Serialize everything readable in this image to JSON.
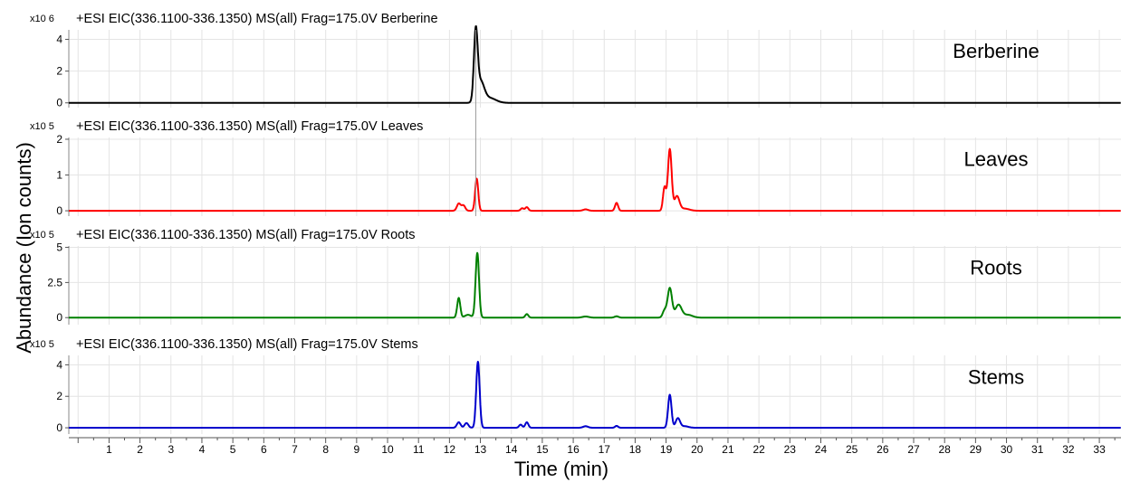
{
  "chart_data": {
    "type": "line",
    "xlabel": "Time (min)",
    "ylabel": "Abundance (Ion counts)",
    "xlim": [
      -0.3,
      33.7
    ],
    "x_ticks": [
      "1",
      "2",
      "3",
      "4",
      "5",
      "6",
      "7",
      "8",
      "9",
      "10",
      "11",
      "12",
      "13",
      "14",
      "15",
      "16",
      "17",
      "18",
      "19",
      "20",
      "21",
      "22",
      "23",
      "24",
      "25",
      "26",
      "27",
      "28",
      "29",
      "30",
      "31",
      "32",
      "33"
    ],
    "grid": true,
    "panels": [
      {
        "title": "+ESI EIC(336.1100-336.1350) MS(all) Frag=175.0V Berberine",
        "scale_label": "x10 6",
        "label": "Berberine",
        "color": "#000000",
        "ylim": [
          -0.3,
          4.6
        ],
        "yticks": [
          0,
          2,
          4
        ],
        "ytick_labels": [
          "0",
          "2",
          "4"
        ],
        "peaks": [
          [
            12.75,
            0.0,
            0.1
          ],
          [
            12.85,
            4.2,
            0.06
          ],
          [
            13.0,
            1.3,
            0.12
          ],
          [
            13.3,
            0.3,
            0.2
          ]
        ]
      },
      {
        "title": "+ESI EIC(336.1100-336.1350) MS(all) Frag=175.0V Leaves",
        "scale_label": "x10 5",
        "label": "Leaves",
        "color": "#ff0000",
        "ylim": [
          -0.15,
          2.05
        ],
        "yticks": [
          0,
          1,
          2
        ],
        "ytick_labels": [
          "0",
          "1",
          "2"
        ],
        "peaks": [
          [
            12.3,
            0.2,
            0.06
          ],
          [
            12.45,
            0.15,
            0.06
          ],
          [
            12.88,
            0.9,
            0.05
          ],
          [
            14.35,
            0.07,
            0.05
          ],
          [
            14.5,
            0.1,
            0.05
          ],
          [
            16.4,
            0.04,
            0.08
          ],
          [
            17.4,
            0.22,
            0.05
          ],
          [
            18.95,
            0.65,
            0.05
          ],
          [
            19.12,
            1.72,
            0.06
          ],
          [
            19.35,
            0.4,
            0.08
          ],
          [
            19.6,
            0.06,
            0.15
          ]
        ]
      },
      {
        "title": "+ESI EIC(336.1100-336.1350) MS(all) Frag=175.0V Roots",
        "scale_label": "x10 5",
        "label": "Roots",
        "color": "#008000",
        "ylim": [
          -0.5,
          5.1
        ],
        "yticks": [
          0,
          2.5,
          5
        ],
        "ytick_labels": [
          "0",
          "2.5",
          "5"
        ],
        "peaks": [
          [
            12.3,
            1.4,
            0.05
          ],
          [
            12.6,
            0.2,
            0.1
          ],
          [
            12.9,
            4.6,
            0.055
          ],
          [
            14.5,
            0.25,
            0.05
          ],
          [
            16.4,
            0.08,
            0.1
          ],
          [
            17.4,
            0.1,
            0.06
          ],
          [
            18.95,
            0.5,
            0.06
          ],
          [
            19.12,
            2.1,
            0.07
          ],
          [
            19.4,
            0.9,
            0.1
          ],
          [
            19.7,
            0.2,
            0.15
          ]
        ]
      },
      {
        "title": "+ESI EIC(336.1100-336.1350) MS(all) Frag=175.0V Stems",
        "scale_label": "x10 5",
        "label": "Stems",
        "color": "#0000cc",
        "ylim": [
          -0.4,
          4.6
        ],
        "yticks": [
          0,
          2,
          4
        ],
        "ytick_labels": [
          "0",
          "2",
          "4"
        ],
        "peaks": [
          [
            12.3,
            0.35,
            0.06
          ],
          [
            12.55,
            0.3,
            0.06
          ],
          [
            12.92,
            4.2,
            0.055
          ],
          [
            14.3,
            0.2,
            0.05
          ],
          [
            14.5,
            0.35,
            0.05
          ],
          [
            16.4,
            0.1,
            0.08
          ],
          [
            17.4,
            0.12,
            0.05
          ],
          [
            19.12,
            2.1,
            0.055
          ],
          [
            19.38,
            0.6,
            0.07
          ],
          [
            19.6,
            0.1,
            0.12
          ]
        ]
      }
    ]
  }
}
